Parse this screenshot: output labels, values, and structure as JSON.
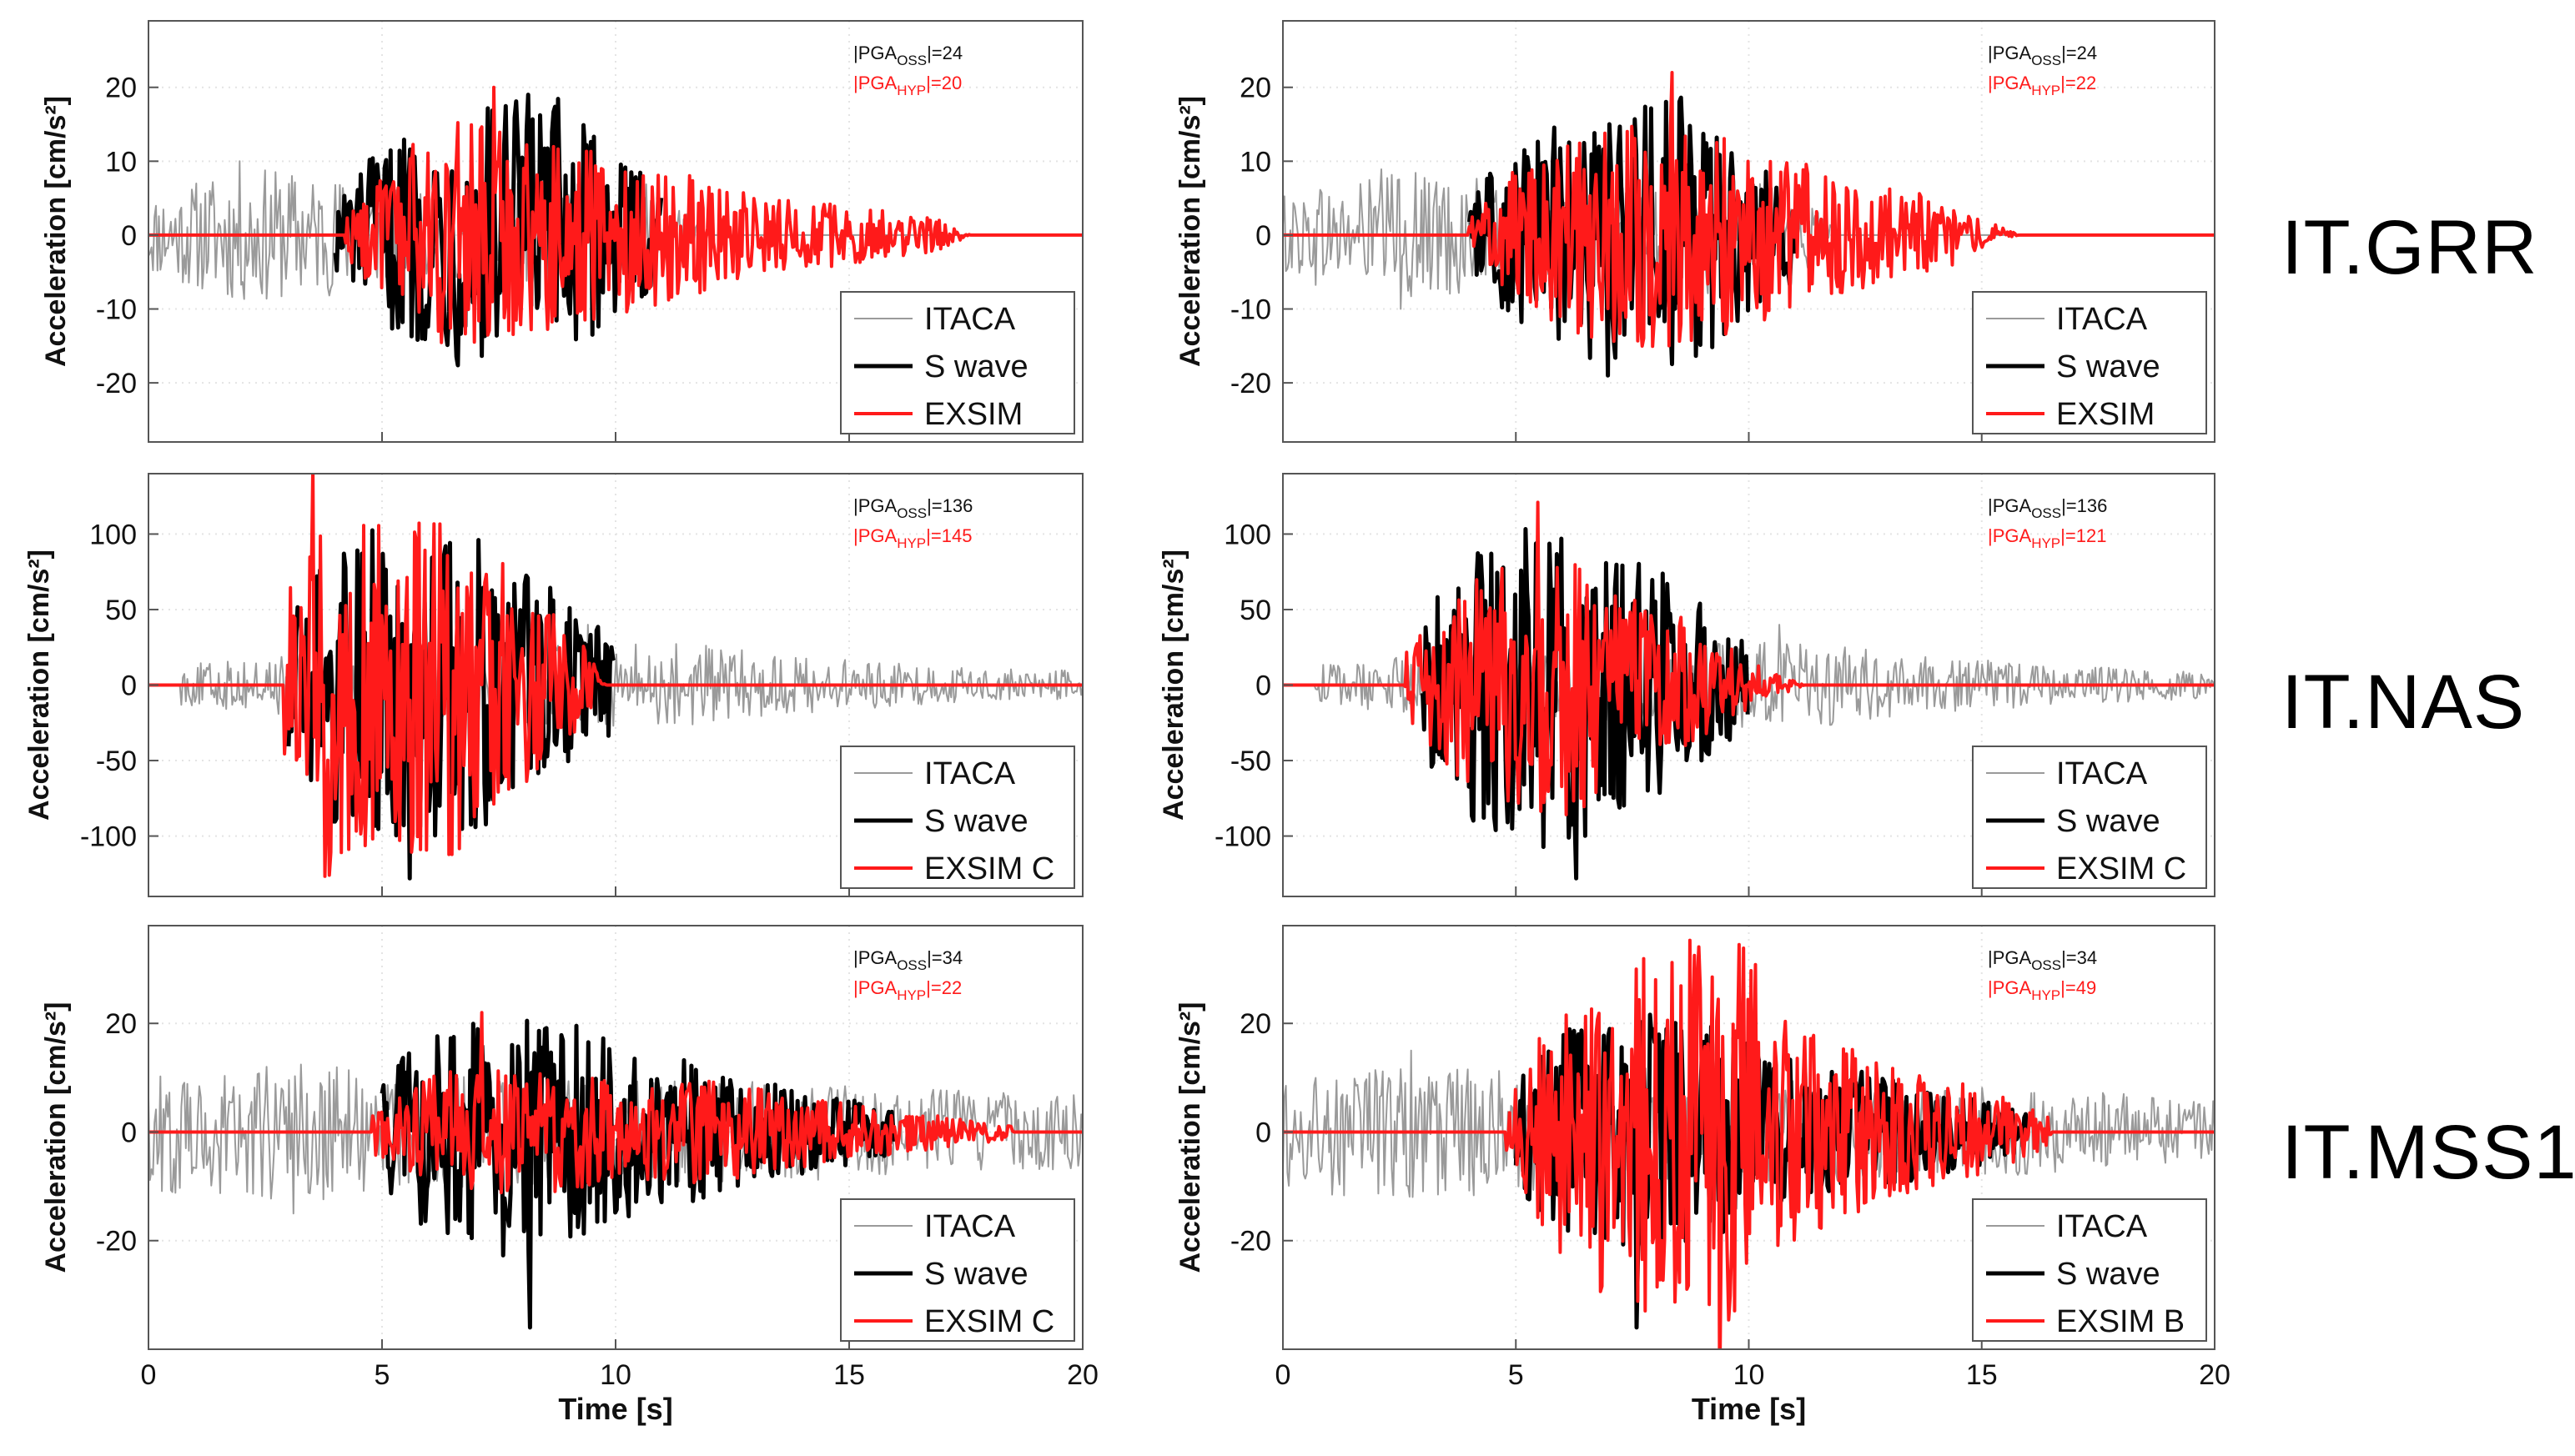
{
  "figure": {
    "ylabel": "Acceleration [cm/s²]",
    "xlabel": "Time [s]",
    "stations": [
      "IT.GRR",
      "IT.NAS",
      "IT.MSS1"
    ]
  },
  "chart_data": [
    {
      "type": "line",
      "id": "grr-left",
      "station": "IT.GRR",
      "xlim": [
        0,
        20
      ],
      "ylim": [
        -28,
        29
      ],
      "xticks": [
        0,
        5,
        10,
        15,
        20
      ],
      "yticks": [
        -20,
        -10,
        0,
        10,
        20
      ],
      "xlabel": "",
      "ylabel": "Acceleration [cm/s²]",
      "pga": {
        "oss_label": "PGA",
        "oss_sub": "OSS",
        "oss_value": "=24",
        "hyp_label": "PGA",
        "hyp_sub": "HYP",
        "hyp_value": "=20"
      },
      "legend": [
        "ITACA",
        "S wave",
        "EXSIM"
      ],
      "series": [
        {
          "name": "ITACA",
          "color": "#9a9a9a",
          "x_range": [
            0,
            20
          ],
          "onset": 0.0,
          "end": 12.0,
          "envelope": [
            [
              0,
              4
            ],
            [
              2,
              7
            ],
            [
              4,
              6
            ],
            [
              6,
              4
            ],
            [
              9,
              6
            ],
            [
              11,
              5
            ],
            [
              12,
              0
            ]
          ],
          "peak": 10
        },
        {
          "name": "S wave",
          "color": "#000000",
          "x_range": [
            4,
            11
          ],
          "onset": 4.0,
          "end": 11.0,
          "envelope": [
            [
              4,
              4
            ],
            [
              5,
              9
            ],
            [
              7,
              14
            ],
            [
              8.5,
              15
            ],
            [
              10,
              8
            ],
            [
              11,
              5
            ]
          ],
          "peak": 19
        },
        {
          "name": "EXSIM",
          "color": "#ff1a1a",
          "x_range": [
            0,
            20
          ],
          "onset": 4.2,
          "end": 17.6,
          "envelope": [
            [
              4.2,
              2
            ],
            [
              5.5,
              9
            ],
            [
              7,
              13
            ],
            [
              9,
              9
            ],
            [
              11,
              7
            ],
            [
              13,
              4
            ],
            [
              15,
              3
            ],
            [
              17,
              1.5
            ],
            [
              17.6,
              0
            ]
          ],
          "peak": 20
        }
      ]
    },
    {
      "type": "line",
      "id": "grr-right",
      "station": "IT.GRR",
      "xlim": [
        0,
        20
      ],
      "ylim": [
        -28,
        29
      ],
      "xticks": [
        0,
        5,
        10,
        15,
        20
      ],
      "yticks": [
        -20,
        -10,
        0,
        10,
        20
      ],
      "xlabel": "",
      "ylabel": "Acceleration [cm/s²]",
      "pga": {
        "oss_label": "PGA",
        "oss_sub": "OSS",
        "oss_value": "=24",
        "hyp_label": "PGA",
        "hyp_sub": "HYP",
        "hyp_value": "=22"
      },
      "legend": [
        "ITACA",
        "S wave",
        "EXSIM"
      ],
      "series": [
        {
          "name": "ITACA",
          "color": "#9a9a9a",
          "x_range": [
            0,
            20
          ],
          "onset": 0.0,
          "end": 12.0,
          "envelope": [
            [
              0,
              4
            ],
            [
              2,
              7
            ],
            [
              4,
              6
            ],
            [
              6,
              4
            ],
            [
              9,
              6
            ],
            [
              11,
              5
            ],
            [
              12,
              0
            ]
          ],
          "peak": 10
        },
        {
          "name": "S wave",
          "color": "#000000",
          "x_range": [
            4,
            11
          ],
          "onset": 4.0,
          "end": 11.0,
          "envelope": [
            [
              4,
              4
            ],
            [
              5,
              9
            ],
            [
              7,
              14
            ],
            [
              8.5,
              15
            ],
            [
              10,
              8
            ],
            [
              11,
              5
            ]
          ],
          "peak": 19
        },
        {
          "name": "EXSIM",
          "color": "#ff1a1a",
          "x_range": [
            0,
            20
          ],
          "onset": 4.0,
          "end": 15.8,
          "envelope": [
            [
              4,
              2
            ],
            [
              5.5,
              9
            ],
            [
              7,
              11
            ],
            [
              8.5,
              12
            ],
            [
              10,
              9
            ],
            [
              12,
              6
            ],
            [
              14,
              4
            ],
            [
              15.8,
              0
            ]
          ],
          "peak": 22
        }
      ]
    },
    {
      "type": "line",
      "id": "nas-left",
      "station": "IT.NAS",
      "xlim": [
        0,
        20
      ],
      "ylim": [
        -140,
        140
      ],
      "xticks": [
        0,
        5,
        10,
        15,
        20
      ],
      "yticks": [
        -100,
        -50,
        0,
        50,
        100
      ],
      "xlabel": "",
      "ylabel": "Acceleration [cm/s²]",
      "pga": {
        "oss_label": "PGA",
        "oss_sub": "OSS",
        "oss_value": "=136",
        "hyp_label": "PGA",
        "hyp_sub": "HYP",
        "hyp_value": "=145"
      },
      "legend": [
        "ITACA",
        "S wave",
        "EXSIM C"
      ],
      "series": [
        {
          "name": "ITACA",
          "color": "#9a9a9a",
          "x_range": [
            0,
            20
          ],
          "onset": 0.7,
          "end": 20.0,
          "envelope": [
            [
              0.7,
              10
            ],
            [
              3,
              15
            ],
            [
              9,
              20
            ],
            [
              11,
              22
            ],
            [
              14,
              14
            ],
            [
              17,
              9
            ],
            [
              20,
              7
            ]
          ],
          "peak": 40
        },
        {
          "name": "S wave",
          "color": "#000000",
          "x_range": [
            3,
            10
          ],
          "onset": 2.9,
          "end": 10.0,
          "envelope": [
            [
              2.9,
              30
            ],
            [
              4,
              70
            ],
            [
              6,
              85
            ],
            [
              8,
              60
            ],
            [
              9.5,
              30
            ],
            [
              10,
              25
            ]
          ],
          "peak": 128
        },
        {
          "name": "EXSIM C",
          "color": "#ff1a1a",
          "x_range": [
            0,
            20
          ],
          "onset": 2.9,
          "end": 9.8,
          "envelope": [
            [
              2.9,
              40
            ],
            [
              3.5,
              100
            ],
            [
              5,
              80
            ],
            [
              6.5,
              85
            ],
            [
              8,
              50
            ],
            [
              9.3,
              20
            ],
            [
              9.8,
              0
            ]
          ],
          "peak": 145
        }
      ]
    },
    {
      "type": "line",
      "id": "nas-right",
      "station": "IT.NAS",
      "xlim": [
        0,
        20
      ],
      "ylim": [
        -140,
        140
      ],
      "xticks": [
        0,
        5,
        10,
        15,
        20
      ],
      "yticks": [
        -100,
        -50,
        0,
        50,
        100
      ],
      "xlabel": "",
      "ylabel": "Acceleration [cm/s²]",
      "pga": {
        "oss_label": "PGA",
        "oss_sub": "OSS",
        "oss_value": "=136",
        "hyp_label": "PGA",
        "hyp_sub": "HYP",
        "hyp_value": "=121"
      },
      "legend": [
        "ITACA",
        "S wave",
        "EXSIM C"
      ],
      "series": [
        {
          "name": "ITACA",
          "color": "#9a9a9a",
          "x_range": [
            0,
            20
          ],
          "onset": 0.7,
          "end": 20.0,
          "envelope": [
            [
              0.7,
              10
            ],
            [
              3,
              15
            ],
            [
              9,
              20
            ],
            [
              11,
              22
            ],
            [
              14,
              14
            ],
            [
              17,
              9
            ],
            [
              20,
              7
            ]
          ],
          "peak": 40
        },
        {
          "name": "S wave",
          "color": "#000000",
          "x_range": [
            3,
            10
          ],
          "onset": 2.9,
          "end": 10.0,
          "envelope": [
            [
              2.9,
              30
            ],
            [
              4,
              70
            ],
            [
              6,
              85
            ],
            [
              8,
              60
            ],
            [
              9.5,
              30
            ],
            [
              10,
              25
            ]
          ],
          "peak": 128
        },
        {
          "name": "EXSIM C",
          "color": "#ff1a1a",
          "x_range": [
            0,
            20
          ],
          "onset": 2.6,
          "end": 11.2,
          "envelope": [
            [
              2.6,
              15
            ],
            [
              4,
              55
            ],
            [
              5.5,
              70
            ],
            [
              7,
              55
            ],
            [
              8.5,
              35
            ],
            [
              10,
              12
            ],
            [
              11.2,
              0
            ]
          ],
          "peak": 121
        }
      ]
    },
    {
      "type": "line",
      "id": "mss1-left",
      "station": "IT.MSS1",
      "xlim": [
        0,
        20
      ],
      "ylim": [
        -40,
        38
      ],
      "xticks": [
        0,
        5,
        10,
        15,
        20
      ],
      "yticks": [
        -20,
        0,
        20
      ],
      "xlabel": "Time [s]",
      "ylabel": "Acceleration [cm/s²]",
      "pga": {
        "oss_label": "PGA",
        "oss_sub": "OSS",
        "oss_value": "=34",
        "hyp_label": "PGA",
        "hyp_sub": "HYP",
        "hyp_value": "=22"
      },
      "legend": [
        "ITACA",
        "S wave",
        "EXSIM C"
      ],
      "series": [
        {
          "name": "ITACA",
          "color": "#9a9a9a",
          "x_range": [
            0,
            20
          ],
          "onset": 0.0,
          "end": 20.0,
          "envelope": [
            [
              0,
              8
            ],
            [
              3,
              10
            ],
            [
              5,
              8
            ],
            [
              9,
              7
            ],
            [
              13,
              7
            ],
            [
              16,
              6
            ],
            [
              20,
              5
            ]
          ],
          "peak": 15
        },
        {
          "name": "S wave",
          "color": "#000000",
          "x_range": [
            5,
            16
          ],
          "onset": 5.0,
          "end": 16.0,
          "envelope": [
            [
              5,
              8
            ],
            [
              6,
              14
            ],
            [
              8,
              18
            ],
            [
              10,
              12
            ],
            [
              12,
              9
            ],
            [
              14,
              6
            ],
            [
              16,
              3
            ]
          ],
          "peak": 36
        },
        {
          "name": "EXSIM C",
          "color": "#ff1a1a",
          "x_range": [
            0,
            20
          ],
          "onset": 4.8,
          "end": 18.5,
          "envelope": [
            [
              4.8,
              3
            ],
            [
              6,
              8
            ],
            [
              8,
              9
            ],
            [
              10,
              7
            ],
            [
              12,
              7
            ],
            [
              14,
              5
            ],
            [
              16,
              3
            ],
            [
              18.5,
              1
            ]
          ],
          "peak": 22
        }
      ]
    },
    {
      "type": "line",
      "id": "mss1-right",
      "station": "IT.MSS1",
      "xlim": [
        0,
        20
      ],
      "ylim": [
        -40,
        38
      ],
      "xticks": [
        0,
        5,
        10,
        15,
        20
      ],
      "yticks": [
        -20,
        0,
        20
      ],
      "xlabel": "Time [s]",
      "ylabel": "Acceleration [cm/s²]",
      "pga": {
        "oss_label": "PGA",
        "oss_sub": "OSS",
        "oss_value": "=34",
        "hyp_label": "PGA",
        "hyp_sub": "HYP",
        "hyp_value": "=49"
      },
      "legend": [
        "ITACA",
        "S wave",
        "EXSIM B"
      ],
      "series": [
        {
          "name": "ITACA",
          "color": "#9a9a9a",
          "x_range": [
            0,
            20
          ],
          "onset": 0.0,
          "end": 20.0,
          "envelope": [
            [
              0,
              8
            ],
            [
              3,
              10
            ],
            [
              5,
              8
            ],
            [
              9,
              7
            ],
            [
              13,
              7
            ],
            [
              16,
              6
            ],
            [
              20,
              5
            ]
          ],
          "peak": 15
        },
        {
          "name": "S wave",
          "color": "#000000",
          "x_range": [
            5,
            16
          ],
          "onset": 5.0,
          "end": 16.0,
          "envelope": [
            [
              5,
              8
            ],
            [
              6,
              14
            ],
            [
              8,
              18
            ],
            [
              10,
              12
            ],
            [
              12,
              9
            ],
            [
              14,
              6
            ],
            [
              16,
              3
            ]
          ],
          "peak": 36
        },
        {
          "name": "EXSIM B",
          "color": "#ff1a1a",
          "x_range": [
            0,
            20
          ],
          "onset": 4.8,
          "end": 16.5,
          "envelope": [
            [
              4.8,
              5
            ],
            [
              6,
              20
            ],
            [
              8,
              25
            ],
            [
              9.8,
              30
            ],
            [
              11,
              15
            ],
            [
              13,
              9
            ],
            [
              15,
              6
            ],
            [
              16.5,
              2
            ]
          ],
          "peak": 49
        }
      ]
    }
  ]
}
